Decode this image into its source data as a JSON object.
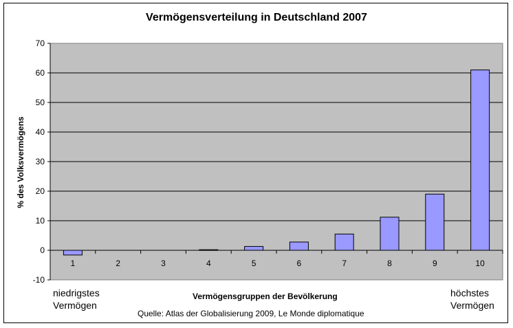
{
  "chart_data": {
    "type": "bar",
    "title": "Vermögensverteilung in Deutschland 2007",
    "xlabel": "Vermögensgruppen der Bevölkerung",
    "ylabel": "% des Volksvermögens",
    "categories": [
      "1",
      "2",
      "3",
      "4",
      "5",
      "6",
      "7",
      "8",
      "9",
      "10"
    ],
    "values": [
      -1.6,
      0,
      0,
      0.2,
      1.3,
      2.8,
      5.5,
      11.2,
      19.0,
      61.0
    ],
    "ylim": [
      -10,
      70
    ],
    "yticks": [
      "70",
      "60",
      "50",
      "40",
      "30",
      "20",
      "10",
      "0",
      "-10"
    ],
    "grid": true,
    "annotations": {
      "left": [
        "niedrigstes",
        "Vermögen"
      ],
      "right": [
        "höchstes",
        "Vermögen"
      ]
    },
    "source": "Quelle: Atlas der Globalisierung 2009, Le Monde diplomatique",
    "colors": {
      "plot_bg": "#c0c0c0",
      "bar": "#9999ff",
      "bar_edge": "#000000"
    }
  }
}
